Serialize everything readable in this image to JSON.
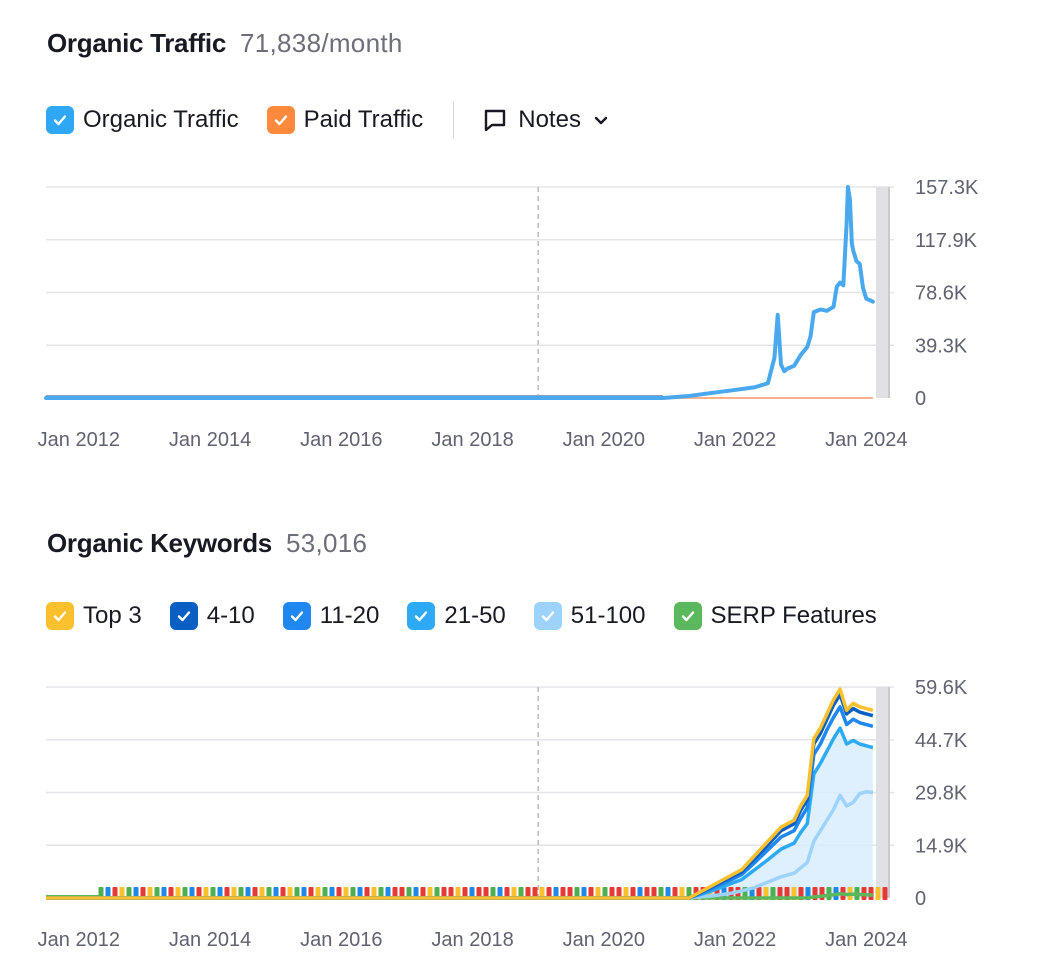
{
  "traffic": {
    "title": "Organic Traffic",
    "value": "71,838/month",
    "legend": [
      {
        "label": "Organic Traffic",
        "color": "#2ea8f5"
      },
      {
        "label": "Paid Traffic",
        "color": "#ff8a3d"
      }
    ],
    "notes_label": "Notes"
  },
  "keywords": {
    "title": "Organic Keywords",
    "value": "53,016",
    "legend": [
      {
        "label": "Top 3",
        "color": "#fbc02d"
      },
      {
        "label": "4-10",
        "color": "#0a5fc4"
      },
      {
        "label": "11-20",
        "color": "#1e88f0"
      },
      {
        "label": "21-50",
        "color": "#2eaaf5"
      },
      {
        "label": "51-100",
        "color": "#9dd3fb"
      },
      {
        "label": "SERP Features",
        "color": "#5cb85c"
      }
    ]
  },
  "chart_data": [
    {
      "type": "line",
      "title": "Organic Traffic",
      "x_ticks": [
        "Jan 2012",
        "Jan 2014",
        "Jan 2016",
        "Jan 2018",
        "Jan 2020",
        "Jan 2022",
        "Jan 2024"
      ],
      "y_ticks": [
        "157.3K",
        "117.9K",
        "78.6K",
        "39.3K",
        "0"
      ],
      "ylim": [
        0,
        157300
      ],
      "xlim": [
        2011.5,
        2024.3
      ],
      "series": [
        {
          "name": "Organic Traffic",
          "color": "#4aa9ee",
          "x": [
            2011.5,
            2020.9,
            2021.3,
            2021.6,
            2022.0,
            2022.3,
            2022.5,
            2022.6,
            2022.65,
            2022.7,
            2022.75,
            2022.8,
            2022.9,
            2023.0,
            2023.1,
            2023.15,
            2023.2,
            2023.3,
            2023.4,
            2023.5,
            2023.55,
            2023.6,
            2023.65,
            2023.7,
            2023.72,
            2023.75,
            2023.78,
            2023.8,
            2023.85,
            2023.9,
            2023.95,
            2024.0,
            2024.05,
            2024.1
          ],
          "y": [
            0,
            0,
            1500,
            3500,
            6000,
            8000,
            11000,
            30000,
            62000,
            25000,
            20000,
            22000,
            24000,
            32000,
            38000,
            46000,
            64000,
            66000,
            65000,
            68000,
            83000,
            86000,
            84000,
            130000,
            157300,
            148000,
            115000,
            110000,
            102000,
            100000,
            82000,
            74000,
            73000,
            71838
          ]
        },
        {
          "name": "Paid Traffic",
          "color": "#ffb08a",
          "x": [
            2011.5,
            2024.1
          ],
          "y": [
            0,
            0
          ]
        }
      ]
    },
    {
      "type": "area",
      "title": "Organic Keywords",
      "x_ticks": [
        "Jan 2012",
        "Jan 2014",
        "Jan 2016",
        "Jan 2018",
        "Jan 2020",
        "Jan 2022",
        "Jan 2024"
      ],
      "y_ticks": [
        "59.6K",
        "44.7K",
        "29.8K",
        "14.9K",
        "0"
      ],
      "ylim": [
        0,
        59600
      ],
      "xlim": [
        2011.5,
        2024.3
      ],
      "x": [
        2011.5,
        2021.3,
        2021.6,
        2021.9,
        2022.1,
        2022.3,
        2022.5,
        2022.7,
        2022.9,
        2023.0,
        2023.1,
        2023.2,
        2023.3,
        2023.4,
        2023.5,
        2023.6,
        2023.7,
        2023.8,
        2023.9,
        2024.0,
        2024.1
      ],
      "series": [
        {
          "name": "Top 3",
          "color": "#fbc02d",
          "values": [
            0,
            0,
            3000,
            6000,
            8000,
            12000,
            16000,
            20000,
            22000,
            26000,
            29000,
            45000,
            48000,
            52000,
            56000,
            59000,
            53000,
            55000,
            54000,
            53500,
            53016
          ]
        },
        {
          "name": "4-10",
          "color": "#0a5fc4",
          "values": [
            0,
            0,
            2700,
            5500,
            7400,
            11200,
            15000,
            19000,
            21000,
            24800,
            27800,
            43500,
            46500,
            50500,
            54500,
            57500,
            52000,
            53500,
            52500,
            52000,
            51500
          ]
        },
        {
          "name": "11-20",
          "color": "#1e88f0",
          "values": [
            0,
            0,
            2300,
            4800,
            6600,
            10000,
            13600,
            17200,
            19000,
            22500,
            25500,
            40500,
            43500,
            47500,
            51000,
            54000,
            49000,
            50500,
            49500,
            49000,
            48500
          ]
        },
        {
          "name": "21-50",
          "color": "#2eaaf5",
          "values": [
            0,
            0,
            1700,
            3800,
            5200,
            8000,
            10800,
            13800,
            15500,
            18500,
            21000,
            35000,
            38000,
            41500,
            45000,
            48000,
            43500,
            44500,
            43500,
            43000,
            42500
          ]
        },
        {
          "name": "51-100",
          "color": "#9dd3fb",
          "values": [
            0,
            0,
            500,
            1200,
            2000,
            3000,
            4500,
            6000,
            7000,
            8500,
            10000,
            16000,
            19000,
            22000,
            25000,
            29000,
            26000,
            27000,
            29500,
            30000,
            29800
          ]
        },
        {
          "name": "SERP Features",
          "color": "#5cb85c",
          "values": [
            0,
            0,
            0,
            0,
            0,
            0,
            0,
            0,
            0,
            0,
            0,
            300,
            500,
            700,
            900,
            1200,
            1000,
            1100,
            1000,
            900,
            800
          ]
        }
      ]
    }
  ]
}
